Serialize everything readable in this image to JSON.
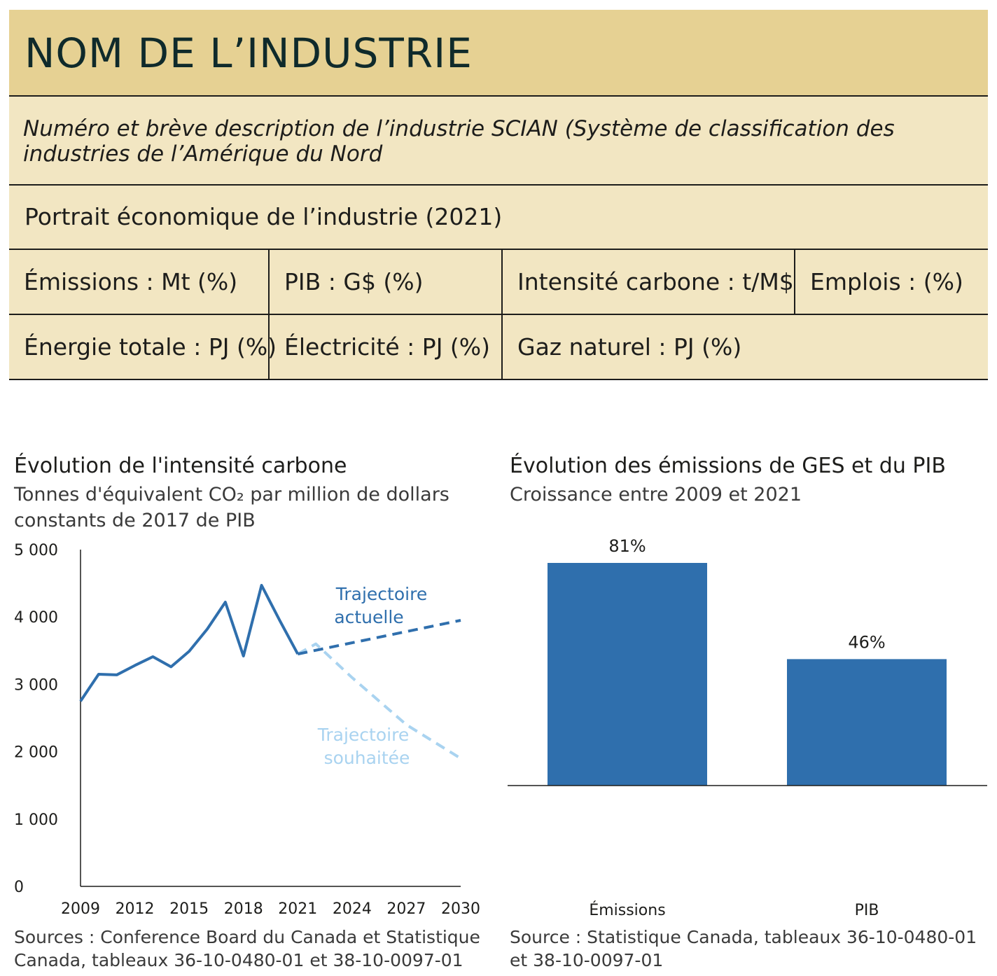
{
  "header": {
    "title": "NOM DE L’INDUSTRIE",
    "description": "Numéro et brève description de l’industrie SCIAN (Système de classification des industries de l’Amérique du Nord",
    "portrait": "Portrait économique de l’industrie (2021)",
    "row1": [
      "Émissions : Mt (%)",
      "PIB :  G$ (%)",
      "Intensité carbone : t/M$",
      "Emplois : (%)"
    ],
    "row2": [
      "Énergie totale : PJ (%)",
      "Électricité : PJ (%)",
      "Gaz naturel : PJ (%)"
    ]
  },
  "colors": {
    "title_band": "#e6d193",
    "row_band": "#f2e6c2",
    "dark_blue": "#2f6fad",
    "light_blue": "#a9d3f0",
    "bar_blue": "#2f6fad"
  },
  "left_chart": {
    "title": "Évolution de l'intensité carbone",
    "subtitle_line1": "Tonnes d'équivalent CO₂ par million de dollars",
    "subtitle_line2": "constants de 2017 de PIB",
    "source_line1": "Sources : Conference Board du Canada et Statistique",
    "source_line2": "Canada, tableaux 36-10-0480-01 et 38-10-0097-01"
  },
  "right_chart": {
    "title": "Évolution des émissions de GES et du PIB",
    "subtitle": "Croissance entre 2009 et 2021",
    "source_line1": "Source : Statistique Canada, tableaux 36-10-0480-01",
    "source_line2": "et 38-10-0097-01"
  },
  "chart_data": [
    {
      "type": "line",
      "ylim": [
        0,
        5000
      ],
      "yticks": [
        0,
        1000,
        2000,
        3000,
        4000,
        5000
      ],
      "ytick_labels": [
        "0",
        "1 000",
        "2 000",
        "3 000",
        "4 000",
        "5 000"
      ],
      "xlim": [
        2009,
        2030
      ],
      "xticks": [
        2009,
        2012,
        2015,
        2018,
        2021,
        2024,
        2027,
        2030
      ],
      "xtick_labels": [
        "2009",
        "2012",
        "2015",
        "2018",
        "2021",
        "2024",
        "2027",
        "2030"
      ],
      "grid": false,
      "series": [
        {
          "style": "solid",
          "color": "#2f6fad",
          "x": [
            2009,
            2010,
            2011,
            2012,
            2013,
            2014,
            2015,
            2016,
            2017,
            2018,
            2019,
            2020,
            2021
          ],
          "y": [
            2750,
            3150,
            3140,
            3280,
            3410,
            3260,
            3490,
            3820,
            4220,
            3420,
            4470,
            3950,
            3450
          ]
        },
        {
          "name": "Trajectoire actuelle",
          "style": "dashed",
          "color": "#2f6fad",
          "x": [
            2021,
            2030
          ],
          "y": [
            3450,
            3950
          ]
        },
        {
          "name": "Trajectoire souhaitée",
          "style": "dashed",
          "color": "#a9d3f0",
          "x": [
            2021,
            2022,
            2024,
            2027,
            2030
          ],
          "y": [
            3450,
            3600,
            3100,
            2400,
            1900
          ]
        }
      ],
      "annotations": [
        {
          "line1": "Trajectoire",
          "line2": "actuelle",
          "color": "#2f6fad"
        },
        {
          "line1": "Trajectoire",
          "line2": "souhaitée",
          "color": "#a9d3f0"
        }
      ]
    },
    {
      "type": "bar",
      "categories": [
        "Émissions",
        "PIB"
      ],
      "values": [
        81,
        46
      ],
      "value_labels": [
        "81%",
        "46%"
      ],
      "unit": "%",
      "ylim": [
        0,
        100
      ],
      "color": "#2f6fad"
    }
  ]
}
